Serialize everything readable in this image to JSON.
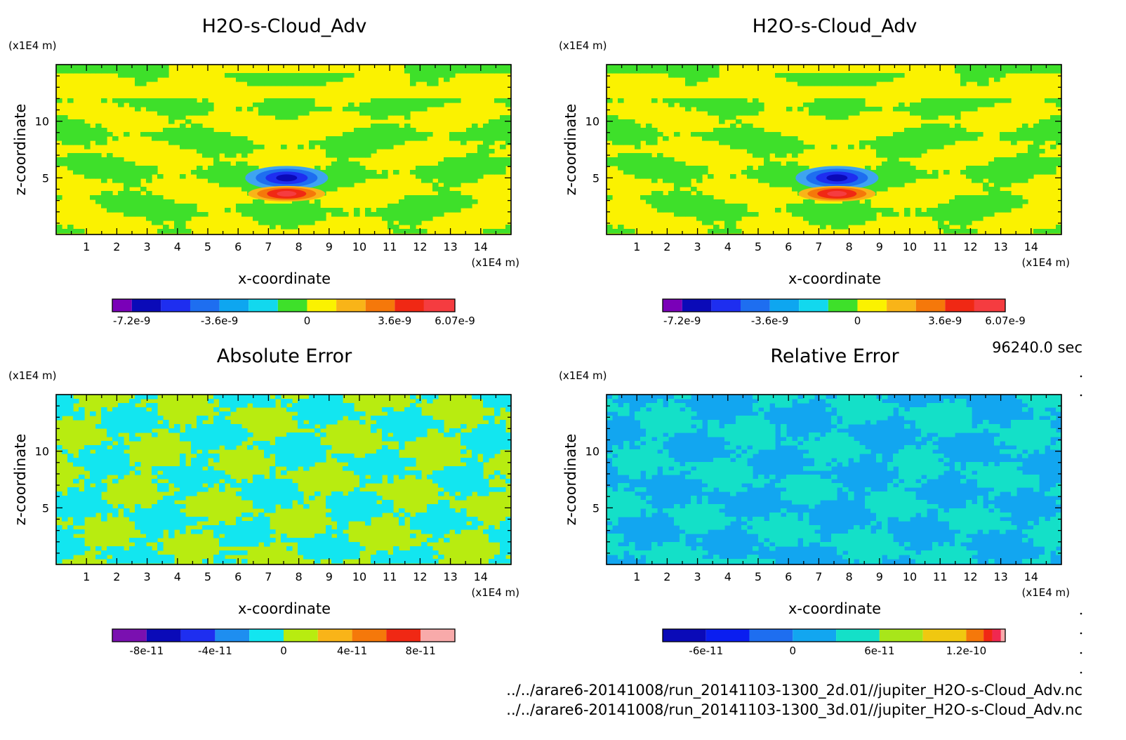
{
  "time_label": "96240.0 sec",
  "file_paths": [
    "../../arare6-20141008/run_20141103-1300_2d.01//jupiter_H2O-s-Cloud_Adv.nc",
    "../../arare6-20141008/run_20141103-1300_3d.01//jupiter_H2O-s-Cloud_Adv.nc"
  ],
  "chart_data": [
    {
      "type": "heatmap",
      "title": "H2O-s-Cloud_Adv",
      "xlabel": "x-coordinate",
      "ylabel": "z-coordinate",
      "x_unit": "(x1E4 m)",
      "y_unit": "(x1E4 m)",
      "xlim": [
        0,
        15
      ],
      "ylim": [
        0,
        15
      ],
      "x_ticks": [
        1,
        2,
        3,
        4,
        5,
        6,
        7,
        8,
        9,
        10,
        11,
        12,
        13,
        14
      ],
      "y_ticks": [
        5,
        10
      ],
      "pattern": "field",
      "feature": {
        "x": 7.6,
        "z_neg": 5.0,
        "z_pos": 3.6
      },
      "colorbar": {
        "colors": [
          "#7a00b8",
          "#0a0ab8",
          "#1e2ef0",
          "#1e6ef0",
          "#0ea6f0",
          "#12d8ee",
          "#3ee02a",
          "#fbf200",
          "#f9b418",
          "#f5780a",
          "#f02814",
          "#f53c40"
        ],
        "levels": [
          -8e-09,
          -7.2e-09,
          -6e-09,
          -4.8e-09,
          -3.6e-09,
          -2.4e-09,
          -1.2e-09,
          0,
          1.2e-09,
          2.4e-09,
          3.6e-09,
          4.8e-09,
          6.07e-09
        ],
        "tick_labels": [
          "-7.2e-9",
          "-3.6e-9",
          "0",
          "3.6e-9",
          "6.07e-9"
        ],
        "tick_values": [
          -7.2e-09,
          -3.6e-09,
          0,
          3.6e-09,
          6.07e-09
        ]
      },
      "dominant_colors": [
        "#fbf200",
        "#3ee02a"
      ]
    },
    {
      "type": "heatmap",
      "title": "H2O-s-Cloud_Adv",
      "xlabel": "x-coordinate",
      "ylabel": "z-coordinate",
      "x_unit": "(x1E4 m)",
      "y_unit": "(x1E4 m)",
      "xlim": [
        0,
        15
      ],
      "ylim": [
        0,
        15
      ],
      "x_ticks": [
        1,
        2,
        3,
        4,
        5,
        6,
        7,
        8,
        9,
        10,
        11,
        12,
        13,
        14
      ],
      "y_ticks": [
        5,
        10
      ],
      "pattern": "field",
      "feature": {
        "x": 7.6,
        "z_neg": 5.0,
        "z_pos": 3.6
      },
      "colorbar": {
        "colors": [
          "#7a00b8",
          "#0a0ab8",
          "#1e2ef0",
          "#1e6ef0",
          "#0ea6f0",
          "#12d8ee",
          "#3ee02a",
          "#fbf200",
          "#f9b418",
          "#f5780a",
          "#f02814",
          "#f53c40"
        ],
        "levels": [
          -8e-09,
          -7.2e-09,
          -6e-09,
          -4.8e-09,
          -3.6e-09,
          -2.4e-09,
          -1.2e-09,
          0,
          1.2e-09,
          2.4e-09,
          3.6e-09,
          4.8e-09,
          6.07e-09
        ],
        "tick_labels": [
          "-7.2e-9",
          "-3.6e-9",
          "0",
          "3.6e-9",
          "6.07e-9"
        ],
        "tick_values": [
          -7.2e-09,
          -3.6e-09,
          0,
          3.6e-09,
          6.07e-09
        ]
      },
      "dominant_colors": [
        "#fbf200",
        "#3ee02a"
      ]
    },
    {
      "type": "heatmap",
      "title": "Absolute Error",
      "xlabel": "x-coordinate",
      "ylabel": "z-coordinate",
      "x_unit": "(x1E4 m)",
      "y_unit": "(x1E4 m)",
      "xlim": [
        0,
        15
      ],
      "ylim": [
        0,
        15
      ],
      "x_ticks": [
        1,
        2,
        3,
        4,
        5,
        6,
        7,
        8,
        9,
        10,
        11,
        12,
        13,
        14
      ],
      "y_ticks": [
        5,
        10
      ],
      "pattern": "noise",
      "colorbar": {
        "colors": [
          "#7a10b0",
          "#0a0ab8",
          "#1e2ef0",
          "#1e8ef0",
          "#12e6f0",
          "#b8ec10",
          "#f9b418",
          "#f5780a",
          "#f02814",
          "#f8aaaa"
        ],
        "levels": [
          -1e-10,
          -8e-11,
          -6e-11,
          -4e-11,
          -2e-11,
          0,
          2e-11,
          4e-11,
          6e-11,
          8e-11,
          1e-10
        ],
        "tick_labels": [
          "-8e-11",
          "-4e-11",
          "0",
          "4e-11",
          "8e-11"
        ],
        "tick_values": [
          -8e-11,
          -4e-11,
          0,
          4e-11,
          8e-11
        ]
      },
      "dominant_colors": [
        "#b8ec10",
        "#12e6f0"
      ]
    },
    {
      "type": "heatmap",
      "title": "Relative Error",
      "xlabel": "x-coordinate",
      "ylabel": "z-coordinate",
      "x_unit": "(x1E4 m)",
      "y_unit": "(x1E4 m)",
      "xlim": [
        0,
        15
      ],
      "ylim": [
        0,
        15
      ],
      "x_ticks": [
        1,
        2,
        3,
        4,
        5,
        6,
        7,
        8,
        9,
        10,
        11,
        12,
        13,
        14
      ],
      "y_ticks": [
        5,
        10
      ],
      "pattern": "noise",
      "colorbar": {
        "colors": [
          "#0a0ab8",
          "#0a1ef0",
          "#1e6ef0",
          "#12a6f0",
          "#14e0c8",
          "#a8e61a",
          "#f0c810",
          "#f5780a",
          "#f02814",
          "#f02850",
          "#f8aaaa"
        ],
        "levels": [
          -9e-11,
          -6e-11,
          -3e-11,
          0,
          3e-11,
          6e-11,
          9e-11,
          1.2e-10,
          1.32e-10,
          1.38e-10,
          1.44e-10,
          1.47e-10
        ],
        "tick_labels": [
          "-6e-11",
          "0",
          "6e-11",
          "1.2e-10"
        ],
        "tick_values": [
          -6e-11,
          0,
          6e-11,
          1.2e-10
        ]
      },
      "dominant_colors": [
        "#12a6f0",
        "#14e0c8"
      ]
    }
  ]
}
